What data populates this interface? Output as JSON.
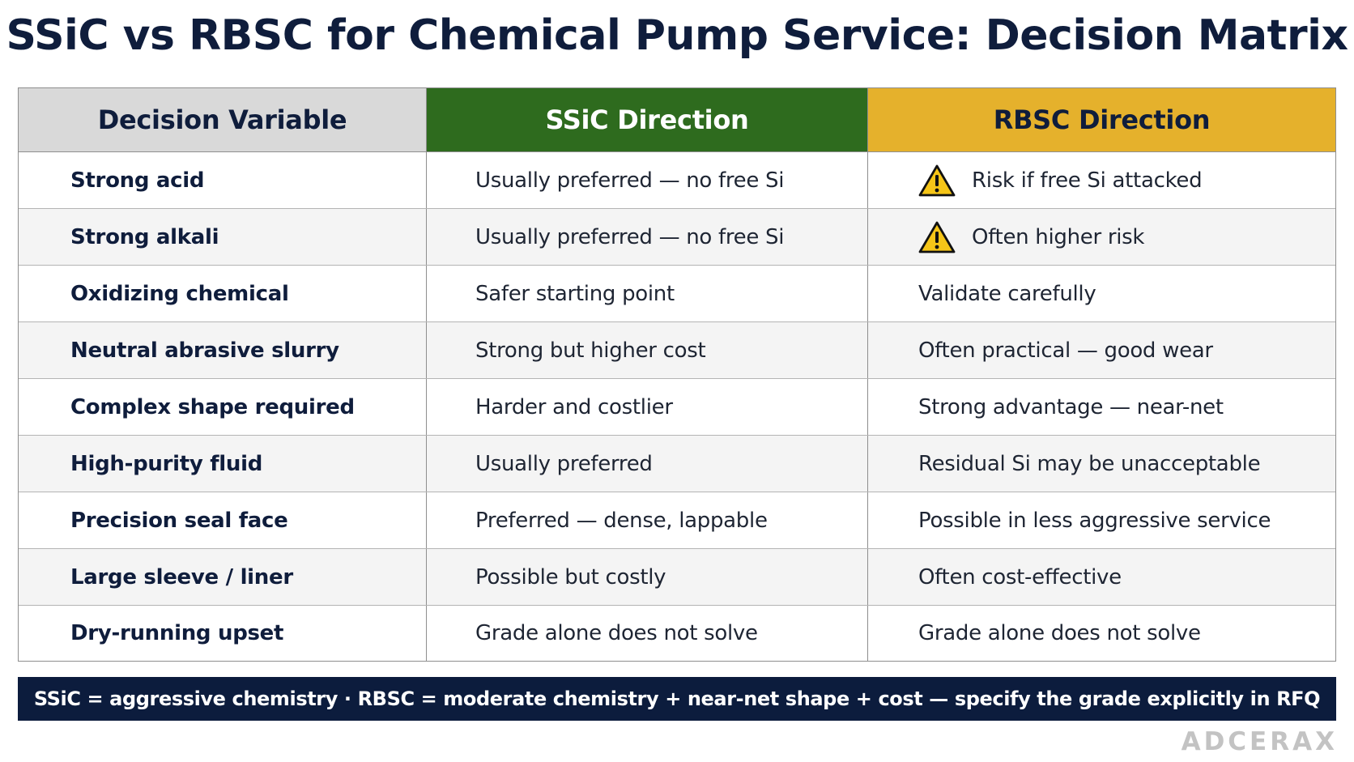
{
  "title": "SSiC vs RBSC for Chemical Pump Service: Decision Matrix",
  "columns": [
    "Decision Variable",
    "SSiC Direction",
    "RBSC Direction"
  ],
  "rows": [
    {
      "variable": "Strong acid",
      "ssic": "Usually preferred — no free Si",
      "rbsc": "Risk if free Si attacked",
      "rbsc_icon": "warning-icon"
    },
    {
      "variable": "Strong alkali",
      "ssic": "Usually preferred — no free Si",
      "rbsc": "Often higher risk",
      "rbsc_icon": "warning-icon"
    },
    {
      "variable": "Oxidizing chemical",
      "ssic": "Safer starting point",
      "rbsc": "Validate carefully"
    },
    {
      "variable": "Neutral abrasive slurry",
      "ssic": "Strong but higher cost",
      "rbsc": "Often practical — good wear"
    },
    {
      "variable": "Complex shape required",
      "ssic": "Harder and costlier",
      "rbsc": "Strong advantage — near-net"
    },
    {
      "variable": "High-purity fluid",
      "ssic": "Usually preferred",
      "rbsc": "Residual Si may be unacceptable"
    },
    {
      "variable": "Precision seal face",
      "ssic": "Preferred — dense, lappable",
      "rbsc": "Possible in less aggressive service"
    },
    {
      "variable": "Large sleeve / liner",
      "ssic": "Possible but costly",
      "rbsc": "Often cost-effective"
    },
    {
      "variable": "Dry-running upset",
      "ssic": "Grade alone does not solve",
      "rbsc": "Grade alone does not solve"
    }
  ],
  "footer": "SSiC = aggressive chemistry · RBSC = moderate chemistry + near-net shape + cost — specify the grade explicitly in RFQ",
  "logo": "ADCERAX",
  "colors": {
    "title": "#0f1d3c",
    "header_variable_bg": "#d9d9d9",
    "header_ssic_bg": "#2e6b1e",
    "header_rbsc_bg": "#e5b12c",
    "footer_bg": "#0c1c3d",
    "warning_fill": "#f5c518"
  }
}
